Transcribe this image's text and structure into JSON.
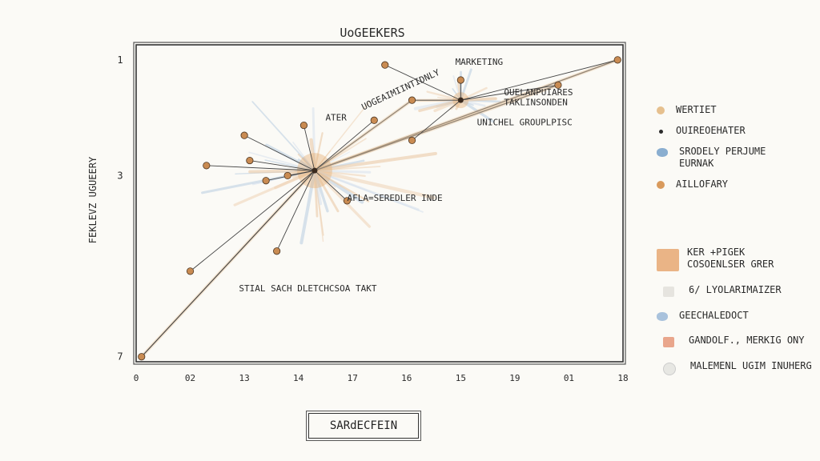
{
  "chart_data": {
    "type": "scatter",
    "title": "UoGEEKERS",
    "xlabel": "SARdECFEIN",
    "ylabel": "FEKLEVZ UGUEERY",
    "x_ticks": [
      "0",
      "02",
      "13",
      "14",
      "17",
      "16",
      "15",
      "19",
      "01",
      "18"
    ],
    "y_ticks": [
      "1",
      "3",
      "7"
    ],
    "grid": false,
    "legend_position": "right",
    "hub_points": [
      {
        "name": "hub-left",
        "x": 3.3,
        "y": 3.2
      },
      {
        "name": "hub-right",
        "x": 6.0,
        "y": 1.8
      }
    ],
    "points": [
      {
        "x": 0.1,
        "y": 6.9,
        "color": "#c98b52"
      },
      {
        "x": 1.0,
        "y": 5.2,
        "color": "#c98b52"
      },
      {
        "x": 1.3,
        "y": 3.1,
        "color": "#c98b52"
      },
      {
        "x": 2.0,
        "y": 2.5,
        "color": "#c98b52"
      },
      {
        "x": 2.1,
        "y": 3.0,
        "color": "#c98b52"
      },
      {
        "x": 2.4,
        "y": 3.4,
        "color": "#c98b52"
      },
      {
        "x": 2.6,
        "y": 4.8,
        "color": "#c98b52"
      },
      {
        "x": 2.8,
        "y": 3.3,
        "color": "#c98b52"
      },
      {
        "x": 3.1,
        "y": 2.3,
        "color": "#c98b52"
      },
      {
        "x": 3.9,
        "y": 3.8,
        "color": "#c98b52"
      },
      {
        "x": 4.4,
        "y": 2.2,
        "color": "#c98b52"
      },
      {
        "x": 4.6,
        "y": 1.1,
        "color": "#c98b52"
      },
      {
        "x": 5.1,
        "y": 1.8,
        "color": "#c98b52"
      },
      {
        "x": 5.1,
        "y": 2.6,
        "color": "#c98b52"
      },
      {
        "x": 6.0,
        "y": 1.4,
        "color": "#c98b52"
      },
      {
        "x": 7.8,
        "y": 1.5,
        "color": "#c98b52"
      },
      {
        "x": 8.9,
        "y": 1.0,
        "color": "#c98b52"
      }
    ],
    "trend_lines": [
      {
        "x": [
          0.1,
          3.3,
          8.9
        ],
        "y": [
          6.9,
          3.2,
          1.0
        ]
      },
      {
        "x": [
          3.3,
          5.1
        ],
        "y": [
          3.2,
          1.8
        ]
      },
      {
        "x": [
          3.3,
          7.8
        ],
        "y": [
          3.2,
          1.5
        ]
      }
    ],
    "annotations": [
      {
        "text": "MARKETING",
        "x": 5.9,
        "y": 1.1
      },
      {
        "text": "UOGEAIMIINTIDNLY",
        "x": 4.2,
        "y": 2.0
      },
      {
        "text": "ATER",
        "x": 3.5,
        "y": 2.2
      },
      {
        "text": "OUELANPUIARES",
        "x": 6.8,
        "y": 1.7
      },
      {
        "text": "TAKLINSONDEN",
        "x": 6.8,
        "y": 1.9
      },
      {
        "text": "UNICHEL GROUPLPISC",
        "x": 6.3,
        "y": 2.3
      },
      {
        "text": "AFLA=SEREDLER INDE",
        "x": 3.9,
        "y": 3.8
      },
      {
        "text": "STIAL SACH DLETCHCSOA TAKT",
        "x": 1.9,
        "y": 5.6
      }
    ],
    "legend": [
      {
        "label": "WERTIET",
        "color": "#e6c08e",
        "shape": "dot"
      },
      {
        "label": "OUIREOEHATER",
        "color": "#2b2b2b",
        "shape": "small-dot"
      },
      {
        "label": "SRODELY PERJUME",
        "label2": "EURNAK",
        "color": "#8aaed0",
        "shape": "blob"
      },
      {
        "label": "AILLOFARY",
        "color": "#d99a5c",
        "shape": "dot"
      }
    ],
    "legend2": [
      {
        "label": "KER +PIGEK",
        "label2": "COSOENLSER GRER",
        "color": "#eab486",
        "shape": "square-large"
      },
      {
        "label": "6/ LYOLARIMAIZER",
        "color": "#e6e4df",
        "shape": "square-small"
      },
      {
        "label": "GEECHALEDOCT",
        "color": "#a9c2dc",
        "shape": "blob"
      },
      {
        "label": "GANDOLF., MERKIG ONY",
        "color": "#e9a68c",
        "shape": "square-small"
      },
      {
        "label": "MALEMENL UGIM INUHERG",
        "color": "#e7e7e3",
        "shape": "circle"
      }
    ]
  }
}
